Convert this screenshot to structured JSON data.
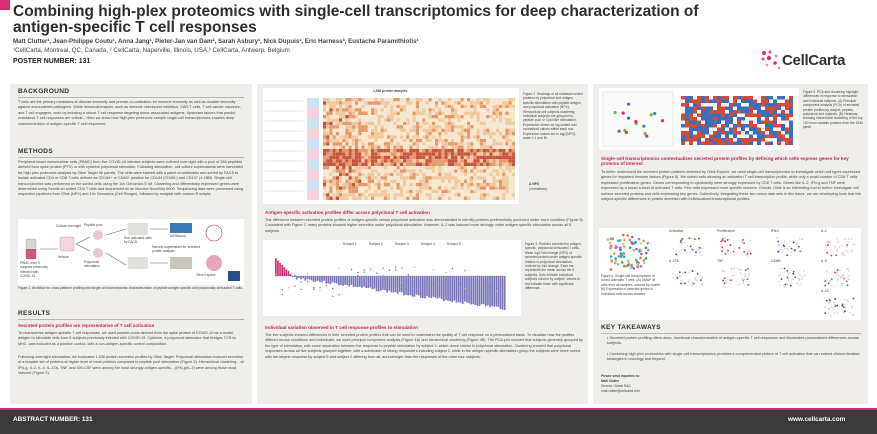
{
  "header": {
    "title": "Combining high-plex proteomics with single-cell transcriptomics for deep characterization of antigen-specific T cell responses",
    "authors": "Matt Clutter¹, Jean-Philippe Coutu¹, Anna Jang¹, Pieter-Jan van Dam², Sarah Asbury¹, Nick Dupuis¹, Eric Harness³, Eustache Paramithiotis¹",
    "affiliations": "¹CellCarta, Montreal, QC, Canada, ² CellCarta, Naperville, Illinois, USA,³ CellCarta, Antwerp, Belgium",
    "poster_number": "POSTER NUMBER: 131",
    "logo_text": "CellCarta"
  },
  "background": {
    "heading": "BACKGROUND",
    "text": "T cells are the primary mediators of disease immunity and precise co-ordination for immune immunity as well as durable immunity against encountered pathogens. While immunotherapies, such as immune checkpoint inhibition, CAR-T cells, T cell cancer vaccines, and T cell engagers, work by inducing a robust T cell response targeting tumor-associated antigens. Upstream factors that predict resistance T cell responses are critical... Here we show how high-plex proteomic sample single-cell transcriptomics enables deep characterization of antigen-specific T cell responses."
  },
  "methods": {
    "heading": "METHODS",
    "text": "Peripheral blood mononuclear cells (PBMC) from five COVID-19 infected subjects were cultured overnight with a pool of 266 peptides derived from spike protein (PTS) or with cytokine polyclonal stimulator. Following stimulation, cell culture supernatants were harvested for high-plex proteomic analysis by Olink Target 96 panels. The cells were stained with a panel of antibodies and sorted by FACS to isolate activated CD4 or CD8 T cells defined as CD154+ or CD69+ positive for CD134 (CD40L) and CD137 (4-1BB). Single-cell transcriptomics was performed on the sorted cells using the 10x Genomics 5' kit. Clustering and differentially expressed genes were determined using Seurat on sorted CD4 T cells and sequenced on an Illumina NovaSeq 6000. Sequencing data were processed using respective pipelines from Olink (NPX) and 10x Genomics (Cell Ranger), followed by analysis with custom R scripts."
  },
  "workflow_figure": {
    "pbmc_label": "PBMC from 5 subjects previously infected with COVID-19",
    "culture_label": "Culture overnight",
    "stim_label": "Peptide pool",
    "vehicle_label": "Vehicle",
    "poly_label": "Polyclonal stimulation",
    "sort_label": "Sort activated cells by FACS",
    "scrna_label": "scRNAseq",
    "harvest_label": "Harvest supernatant for secreted protein analysis",
    "olink_label": "Olink Explore",
    "caption": "Figure 1. Workflow for cross-platform profiling and single-cell transcriptomic characterization of peptide antigen-specific and polyclonally stimulated T cells."
  },
  "results": {
    "heading": "RESULTS",
    "sub1": "Secreted protein profiles are representative of T cell activation",
    "text1": "To characterize antigen-specific T cell responses, we used peptide pools derived from the spike protein of COVID-19 as a model antigen to stimulate cells from 5 subjects previously infected with COVID-19. Cytokine, a polyclonal stimulator that bridges TCR to MHC, was included as a positive control, with a non-antigen-specific control composition.",
    "text2": "Following overnight stimulation, we evaluated 1,536 protein secretion profiles by Olink Target. Polyclonal stimulation induced secretion of a broader set of proteins at higher level of most proteins compared to peptide pool stimulation (Figure 2). Hierarchical clustering... of IFN-g, IL-2, IL-4, IL-17A, TNF, and GM-CSF were among the most strongly antigen-specific... (IFN-g/IL-2) were among those most induced (Figure 2)."
  },
  "middle": {
    "fig2_title": "1,536 protein analytes",
    "fig2_caption": "Figure 2. Heatmap of all unbiased sorted proteins by polyclonal and antigen-specific stimulation with peptide antigen and polyclonal activation (NPX). Hierarchical cell subjects clustering, Individual subjects are grouped by peptide pool or CytoStim stimulation. Expression shown as log-scaled and normalized values within each row. Expression values are in log2(NPX); scale 0-1 and Bl.",
    "scale_label": "Δ NPX",
    "scale_sub": "(normalized)",
    "sub1": "Antigen-specific activation profiles differ across polyclonal T cell activation",
    "text1": "The difference between secreted protein profiles of antigen-specific versus polyclonal activation was demonstrated to identify proteins preferentially produced under each condition (Figure 3). Consistent with Figure 2, many proteins showed higher secretion under polyclonal stimulation. However, IL-2 was induced more strongly under antigen-specific stimulation across all 5 subjects.",
    "fig3_caption": "Figure 3. Proteins secreted by antigen-specific, polyclonal stimulated T cells. Mean log2 fold change (NPX) of secreted protein under antigen-specific relative to polyclonal stimulation, ordered by fold change. Each bar represents the mean across the 5 subjects. Dots indicate individual subjects colored by subject. Values in red indicate those with significant difference.",
    "legend": [
      "Subject 1",
      "Subject 2",
      "Subject 3",
      "Subject 4",
      "Subject 5"
    ],
    "sub2": "Individual variation observed in T cell response profiles to stimulation",
    "text2": "The five subjects showed differences in their secreted protein profiles that can be used to understand the quality of T cell response on a personalized basis. To visualize how the profiles differed across conditions and individuals, we used principal component analysis (Figure 4A) and hierarchical clustering (Figure 4B). The PCA plot showed that subjects generally grouped by the type of stimulation, with some separation between the response to peptide stimulation by subject 2, which drove similar to polyclonal stimulation. Clustering showed that polyclonal responses across all five subjects grouped together, with a subcluster of strong responders including subject 2, while in the antigen-specific stimulation group the subjects were more varied, with the largest response by subject 5 and subject 2 differing from all, and stronger than the responses of the other four subjects."
  },
  "right": {
    "fig5_caption": "Figure 5. PCA and clustering highlight differences in response to stimulation and individual subjects. (A) Principal component analysis (PCA) of secreted protein profiles by subject, peptide, polyclonal and subjects. (B) Heatmap showing hierarchical clustering of the top 100 most variable proteins from the 1536 panel.",
    "sub1": "Single-cell transcriptomics contextualizes secreted protein profiles by defining which cells express genes for key proteins of interest",
    "text1": "To better understand the secreted protein patterns detected by Olink Explore, we used single-cell transcriptomics to investigate which cell types expressed genes for important immune factors (Figure 6). We sorted cells showing an activation T cell transcription profile, while only a small number of CD8 T cells expressed proliferation genes. Genes corresponding to cytotoxicity were strongly expressed by CD8 T cells. Genes like IL-2, IFN-g and TNF were expressed by a broad subset of activated T cells. Few cells expressed more specific markers. Overall, Olink is an interesting tool to further investigate cell surface secreted proteins and cells expressing key genes. Collectively, integrating these two omics data sets in this future, we are developing tools that link subject-specific differences in protein secretion with individualized transcriptional profiles.",
    "fig6_caption": "Figure 6. Single-cell transcriptome of sorted activated T cells. (A) UMAP of cells from all samples, colored by cluster. (B) Expression of selected genes in individual cells across clusters.",
    "umap_labels": [
      "Activation",
      "Proliferation",
      "IFNG",
      "IL-2",
      "IL-17A",
      "TNF",
      "GZMB",
      "IL-5",
      "IL-13"
    ],
    "takeaways_heading": "KEY TAKEAWAYS",
    "takeaway1": "Secreted protein profiling offers deep, functional characterization of antigen-specific T cell responses and illuminates personalized differences across subjects.",
    "takeaway2": "Combining high-plex proteomics with single-cell transcriptomics provides a comprehensive picture of T cell activation that can extend clinical decision strategies in oncology and beyond.",
    "contact_heading": "Please send inquiries to:",
    "contact_name": "Matt Clutter",
    "contact_role": "Director Global R&D",
    "contact_email": "matt.clutter@cellcarta.com"
  },
  "footer": {
    "abstract": "ABSTRACT NUMBER: 131",
    "website": "www.cellcarta.com"
  },
  "colors": {
    "accent": "#d62c72",
    "panel": "#efeeea",
    "footer": "#3a3a3a",
    "heat_high": "#c8553d",
    "heat_low": "#f3e1c9"
  }
}
